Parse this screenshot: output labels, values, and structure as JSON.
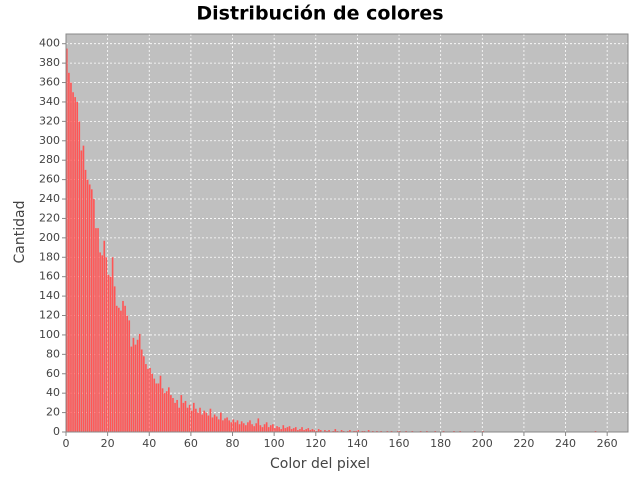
{
  "chart_data": {
    "type": "bar",
    "title": "Distribución de colores",
    "x_label": "Color del pixel",
    "y_label": "Cantidad",
    "color": "#ff5555",
    "background": "#c0c0c0",
    "grid": true,
    "xlim": [
      0,
      270
    ],
    "xticks": [
      0,
      20,
      40,
      60,
      80,
      100,
      120,
      140,
      160,
      180,
      200,
      220,
      240,
      260
    ],
    "ylim": [
      0,
      410
    ],
    "yticks": [
      0,
      20,
      40,
      60,
      80,
      100,
      120,
      140,
      160,
      180,
      200,
      220,
      240,
      260,
      280,
      300,
      320,
      340,
      360,
      380,
      400
    ],
    "x": [
      0,
      1,
      2,
      3,
      4,
      5,
      6,
      7,
      8,
      9,
      10,
      11,
      12,
      13,
      14,
      15,
      16,
      17,
      18,
      19,
      20,
      21,
      22,
      23,
      24,
      25,
      26,
      27,
      28,
      29,
      30,
      31,
      32,
      33,
      34,
      35,
      36,
      37,
      38,
      39,
      40,
      41,
      42,
      43,
      44,
      45,
      46,
      47,
      48,
      49,
      50,
      51,
      52,
      53,
      54,
      55,
      56,
      57,
      58,
      59,
      60,
      61,
      62,
      63,
      64,
      65,
      66,
      67,
      68,
      69,
      70,
      71,
      72,
      73,
      74,
      75,
      76,
      77,
      78,
      79,
      80,
      81,
      82,
      83,
      84,
      85,
      86,
      87,
      88,
      89,
      90,
      91,
      92,
      93,
      94,
      95,
      96,
      97,
      98,
      99,
      100,
      101,
      102,
      103,
      104,
      105,
      106,
      107,
      108,
      109,
      110,
      111,
      112,
      113,
      114,
      115,
      116,
      117,
      118,
      119,
      120,
      121,
      122,
      123,
      124,
      125,
      126,
      127,
      128,
      129,
      130,
      131,
      132,
      133,
      134,
      135,
      136,
      137,
      138,
      139,
      140,
      141,
      142,
      143,
      144,
      145,
      146,
      147,
      148,
      149,
      150,
      151,
      152,
      153,
      154,
      155,
      156,
      157,
      158,
      159,
      160,
      161,
      162,
      163,
      164,
      165,
      166,
      167,
      168,
      169,
      170,
      171,
      172,
      173,
      174,
      175,
      176,
      177,
      178,
      179,
      180,
      181,
      182,
      183,
      184,
      185,
      186,
      187,
      188,
      189,
      190,
      191,
      192,
      193,
      194,
      195,
      196,
      197,
      198,
      199,
      200,
      201,
      202,
      203,
      204,
      205,
      206,
      207,
      208,
      209,
      210,
      211,
      212,
      213,
      214,
      215,
      216,
      217,
      218,
      219,
      220,
      221,
      222,
      223,
      224,
      225,
      226,
      227,
      228,
      229,
      230,
      231,
      232,
      233,
      234,
      235,
      236,
      237,
      238,
      239,
      240,
      241,
      242,
      243,
      244,
      245,
      246,
      247,
      248,
      249,
      250,
      251,
      252,
      253,
      254,
      255
    ],
    "values": [
      395,
      370,
      360,
      350,
      345,
      340,
      320,
      290,
      295,
      270,
      260,
      255,
      250,
      240,
      210,
      210,
      185,
      182,
      197,
      180,
      162,
      160,
      180,
      150,
      130,
      128,
      125,
      135,
      130,
      120,
      115,
      88,
      97,
      90,
      95,
      101,
      85,
      78,
      70,
      65,
      66,
      60,
      55,
      50,
      50,
      58,
      45,
      40,
      42,
      46,
      38,
      35,
      30,
      33,
      25,
      38,
      30,
      32,
      25,
      28,
      22,
      30,
      24,
      20,
      25,
      18,
      22,
      20,
      17,
      24,
      15,
      18,
      16,
      13,
      20,
      12,
      14,
      15,
      12,
      10,
      13,
      10,
      12,
      8,
      11,
      9,
      7,
      10,
      12,
      8,
      6,
      9,
      14,
      7,
      5,
      8,
      10,
      5,
      7,
      8,
      4,
      6,
      5,
      3,
      7,
      4,
      5,
      6,
      3,
      4,
      5,
      2,
      3,
      5,
      2,
      3,
      4,
      2,
      3,
      2,
      1,
      3,
      2,
      0,
      2,
      1,
      2,
      0,
      1,
      3,
      1,
      0,
      2,
      1,
      0,
      1,
      2,
      0,
      1,
      1,
      2,
      0,
      1,
      1,
      0,
      2,
      0,
      1,
      0,
      1,
      0,
      1,
      0,
      0,
      1,
      0,
      1,
      0,
      0,
      1,
      1,
      0,
      0,
      1,
      0,
      0,
      1,
      0,
      0,
      0,
      1,
      0,
      0,
      1,
      0,
      0,
      0,
      1,
      0,
      0,
      0,
      1,
      0,
      0,
      0,
      0,
      1,
      0,
      0,
      1,
      0,
      0,
      0,
      0,
      0,
      0,
      1,
      0,
      0,
      0,
      1,
      0,
      0,
      0,
      0,
      0,
      0,
      0,
      0,
      0,
      0,
      0,
      0,
      0,
      0,
      0,
      0,
      0,
      0,
      0,
      0,
      0,
      0,
      0,
      0,
      0,
      0,
      0,
      0,
      0,
      0,
      0,
      0,
      0,
      0,
      0,
      0,
      0,
      0,
      0,
      0,
      0,
      0,
      0,
      0,
      0,
      0,
      0,
      0,
      0,
      0,
      0,
      0,
      0,
      1,
      0
    ]
  }
}
